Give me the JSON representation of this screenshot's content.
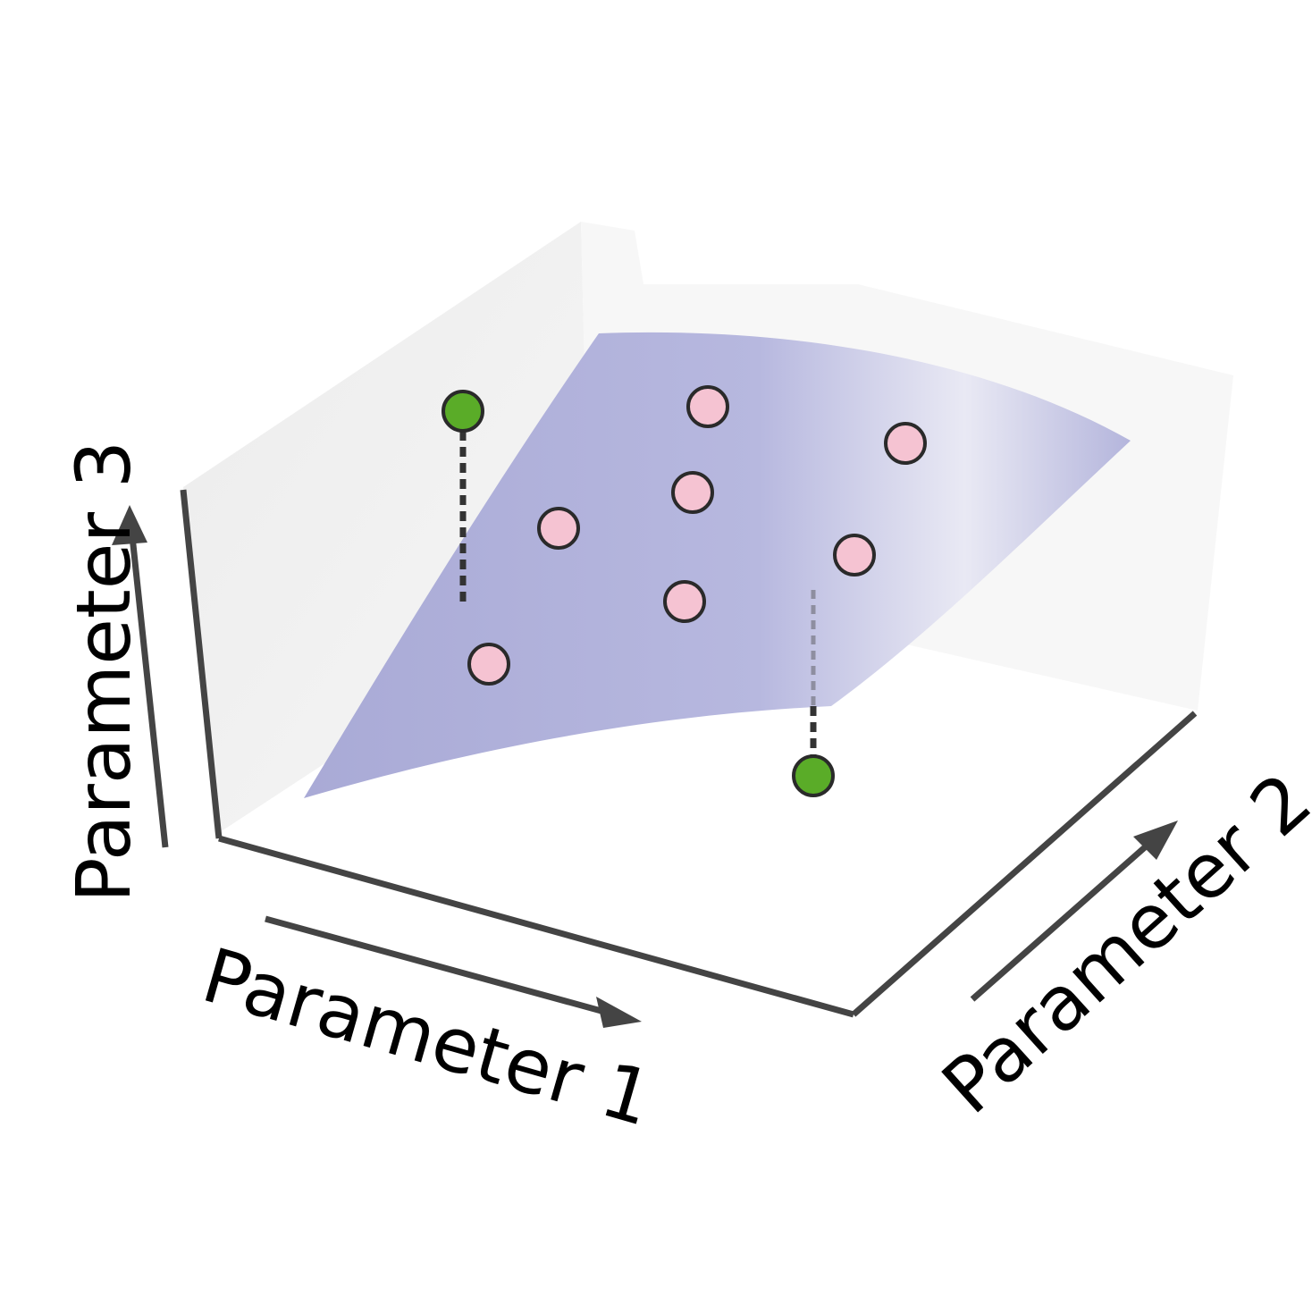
{
  "axes": {
    "x_label": "Parameter 1",
    "y_label": "Parameter 2",
    "z_label": "Parameter 3"
  },
  "colors": {
    "background": "#ffffff",
    "back_wall": "#eeeeee",
    "surface": "#a9aad6",
    "axis_line": "#444444",
    "in_plane_point": "#f5c3d2",
    "outlier_point": "#5aac28",
    "point_outline": "#2a2a2a"
  },
  "points": {
    "on_surface_count": 7,
    "off_surface_count": 2
  }
}
